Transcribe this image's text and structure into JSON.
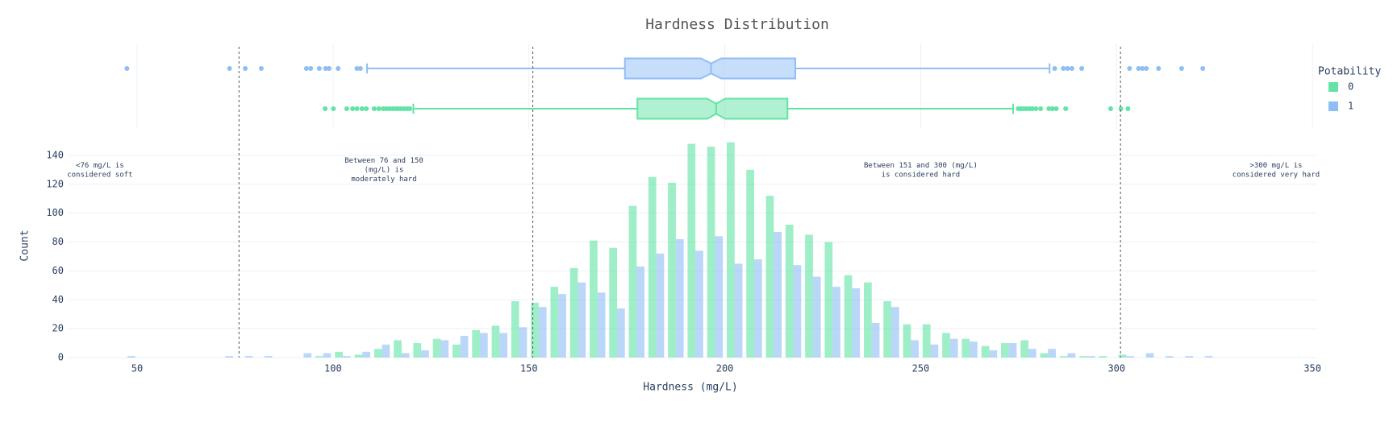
{
  "chart_data": {
    "type": "histogram",
    "title": "Hardness Distribution",
    "xlabel": "Hardness (mg/L)",
    "ylabel": "Count",
    "legend_title": "Potability",
    "legend_position": "right",
    "xlim": [
      32.5,
      351.2
    ],
    "ylim": [
      0,
      155
    ],
    "xticks": [
      50,
      100,
      150,
      200,
      250,
      300,
      350
    ],
    "yticks": [
      0,
      20,
      40,
      60,
      80,
      100,
      120,
      140
    ],
    "grid": true,
    "bins": [
      45,
      50,
      55,
      60,
      65,
      70,
      75,
      80,
      85,
      90,
      95,
      100,
      105,
      110,
      115,
      120,
      125,
      130,
      135,
      140,
      145,
      150,
      155,
      160,
      165,
      170,
      175,
      180,
      185,
      190,
      195,
      200,
      205,
      210,
      215,
      220,
      225,
      230,
      235,
      240,
      245,
      250,
      255,
      260,
      265,
      270,
      275,
      280,
      285,
      290,
      295,
      300,
      305,
      310,
      315,
      320,
      325
    ],
    "series": [
      {
        "name": "0",
        "color": "#63e3a6",
        "values": [
          0,
          0,
          0,
          0,
          0,
          0,
          0,
          0,
          0,
          0,
          1,
          4,
          2,
          6,
          12,
          10,
          13,
          9,
          19,
          22,
          39,
          38,
          49,
          62,
          81,
          76,
          105,
          125,
          121,
          148,
          146,
          149,
          130,
          112,
          92,
          85,
          80,
          57,
          52,
          39,
          23,
          23,
          17,
          13,
          8,
          10,
          12,
          3,
          1,
          1,
          1,
          2,
          0,
          0,
          0,
          0
        ],
        "box": {
          "lowerfence": 120.5,
          "q1": 177.7,
          "median": 197.8,
          "q3": 216.0,
          "upperfence": 273.6,
          "outliers": [
            98.0,
            100.1,
            103.5,
            105.0,
            106.1,
            107.4,
            108.5,
            110.5,
            111.7,
            112.8,
            113.6,
            114.4,
            115.2,
            116.0,
            116.7,
            117.4,
            118.2,
            119.0,
            119.6,
            274.9,
            275.6,
            276.3,
            277.0,
            277.8,
            278.5,
            279.4,
            280.6,
            282.7,
            283.6,
            284.6,
            287.0,
            298.5,
            301.1,
            302.9
          ]
        }
      },
      {
        "name": "1",
        "color": "#8fbdf6",
        "values": [
          1,
          0,
          0,
          0,
          0,
          1,
          1,
          1,
          0,
          3,
          3,
          1,
          4,
          9,
          3,
          5,
          12,
          15,
          17,
          17,
          21,
          35,
          44,
          52,
          45,
          34,
          63,
          72,
          82,
          74,
          84,
          65,
          68,
          87,
          64,
          56,
          49,
          48,
          24,
          35,
          12,
          9,
          13,
          11,
          5,
          10,
          6,
          6,
          3,
          1,
          0,
          1,
          3,
          1,
          1,
          1
        ],
        "box": {
          "lowerfence": 108.7,
          "q1": 174.5,
          "median": 196.5,
          "q3": 218.0,
          "upperfence": 282.9,
          "outliers": [
            47.4,
            73.6,
            77.6,
            81.7,
            93.2,
            94.3,
            96.5,
            98.1,
            99.0,
            101.3,
            106.1,
            107.0,
            284.2,
            286.4,
            287.5,
            288.6,
            291.1,
            303.3,
            305.6,
            306.6,
            307.6,
            310.7,
            316.6,
            322.0
          ]
        }
      }
    ],
    "vlines": [
      76,
      151,
      301
    ],
    "annotations": [
      {
        "x": 40.5,
        "lines": [
          "<76 mg/L is",
          "considered soft"
        ]
      },
      {
        "x": 113,
        "lines": [
          "Between 76 and 150",
          "(mg/L) is",
          "moderately hard"
        ]
      },
      {
        "x": 250,
        "lines": [
          "Between 151 and 300 (mg/L)",
          "is considered hard"
        ]
      },
      {
        "x": 340.7,
        "lines": [
          ">300 mg/L is",
          "considered very hard"
        ]
      }
    ]
  }
}
